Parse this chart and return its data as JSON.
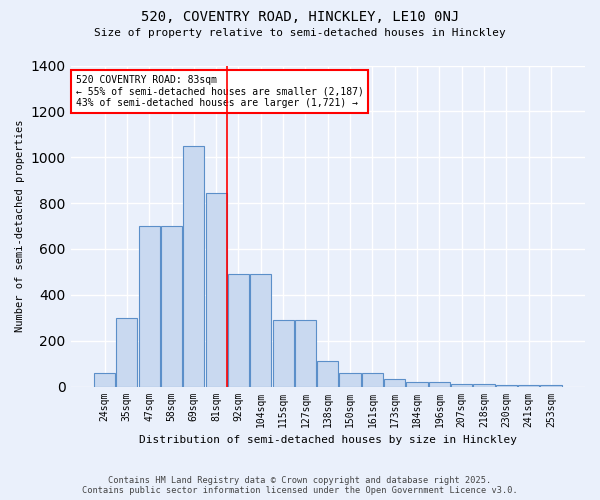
{
  "title_line1": "520, COVENTRY ROAD, HINCKLEY, LE10 0NJ",
  "title_line2": "Size of property relative to semi-detached houses in Hinckley",
  "xlabel": "Distribution of semi-detached houses by size in Hinckley",
  "ylabel": "Number of semi-detached properties",
  "categories": [
    "24sqm",
    "35sqm",
    "47sqm",
    "58sqm",
    "69sqm",
    "81sqm",
    "92sqm",
    "104sqm",
    "115sqm",
    "127sqm",
    "138sqm",
    "150sqm",
    "161sqm",
    "173sqm",
    "184sqm",
    "196sqm",
    "207sqm",
    "218sqm",
    "230sqm",
    "241sqm",
    "253sqm"
  ],
  "values": [
    60,
    300,
    700,
    700,
    1050,
    845,
    490,
    490,
    290,
    290,
    110,
    60,
    60,
    35,
    20,
    20,
    12,
    10,
    5,
    5,
    5
  ],
  "bar_color": "#c9d9f0",
  "bar_edge_color": "#5b8fc9",
  "vline_x_index": 5,
  "vline_color": "red",
  "annotation_text_line1": "520 COVENTRY ROAD: 83sqm",
  "annotation_text_line2": "← 55% of semi-detached houses are smaller (2,187)",
  "annotation_text_line3": "43% of semi-detached houses are larger (1,721) →",
  "annotation_box_color": "white",
  "annotation_box_edge_color": "red",
  "ylim": [
    0,
    1400
  ],
  "yticks": [
    0,
    200,
    400,
    600,
    800,
    1000,
    1200,
    1400
  ],
  "background_color": "#eaf0fb",
  "grid_color": "white",
  "footer_line1": "Contains HM Land Registry data © Crown copyright and database right 2025.",
  "footer_line2": "Contains public sector information licensed under the Open Government Licence v3.0.",
  "figsize": [
    6.0,
    5.0
  ],
  "dpi": 100
}
